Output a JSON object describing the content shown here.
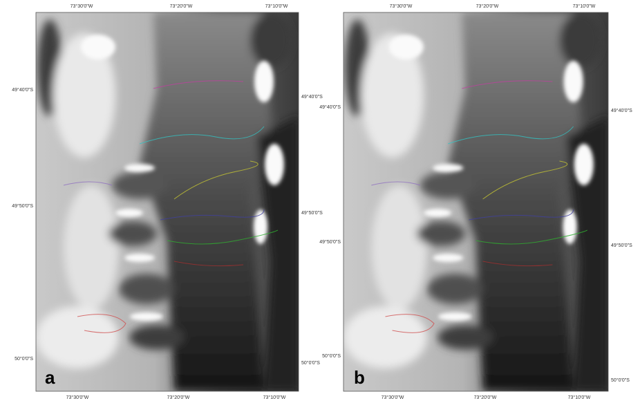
{
  "panels": [
    {
      "label": "a",
      "top_labels": [
        "73°30'0\"W",
        "73°20'0\"W",
        "73°10'0\"W"
      ],
      "bottom_labels": [
        "73°30'0\"W",
        "73°20'0\"W",
        "73°10'0\"W"
      ],
      "left_labels": [
        "49°40'0\"S",
        "49°50'0\"S",
        "50°0'0\"S"
      ],
      "right_labels": [
        "49°40'0\"S",
        "49°50'0\"S",
        "50°0'0\"S"
      ]
    },
    {
      "label": "b",
      "top_labels": [
        "73°30'0\"W",
        "73°20'0\"W",
        "73°10'0\"W"
      ],
      "bottom_labels": [
        "73°30'0\"W",
        "73°20'0\"W",
        "73°10'0\"W"
      ],
      "left_labels": [
        "49°40'0\"S",
        "49°50'0\"S",
        "50°0'0\"S"
      ],
      "right_labels": [
        "49°40'0\"S",
        "49°50'0\"S",
        "50°0'0\"S"
      ]
    }
  ]
}
